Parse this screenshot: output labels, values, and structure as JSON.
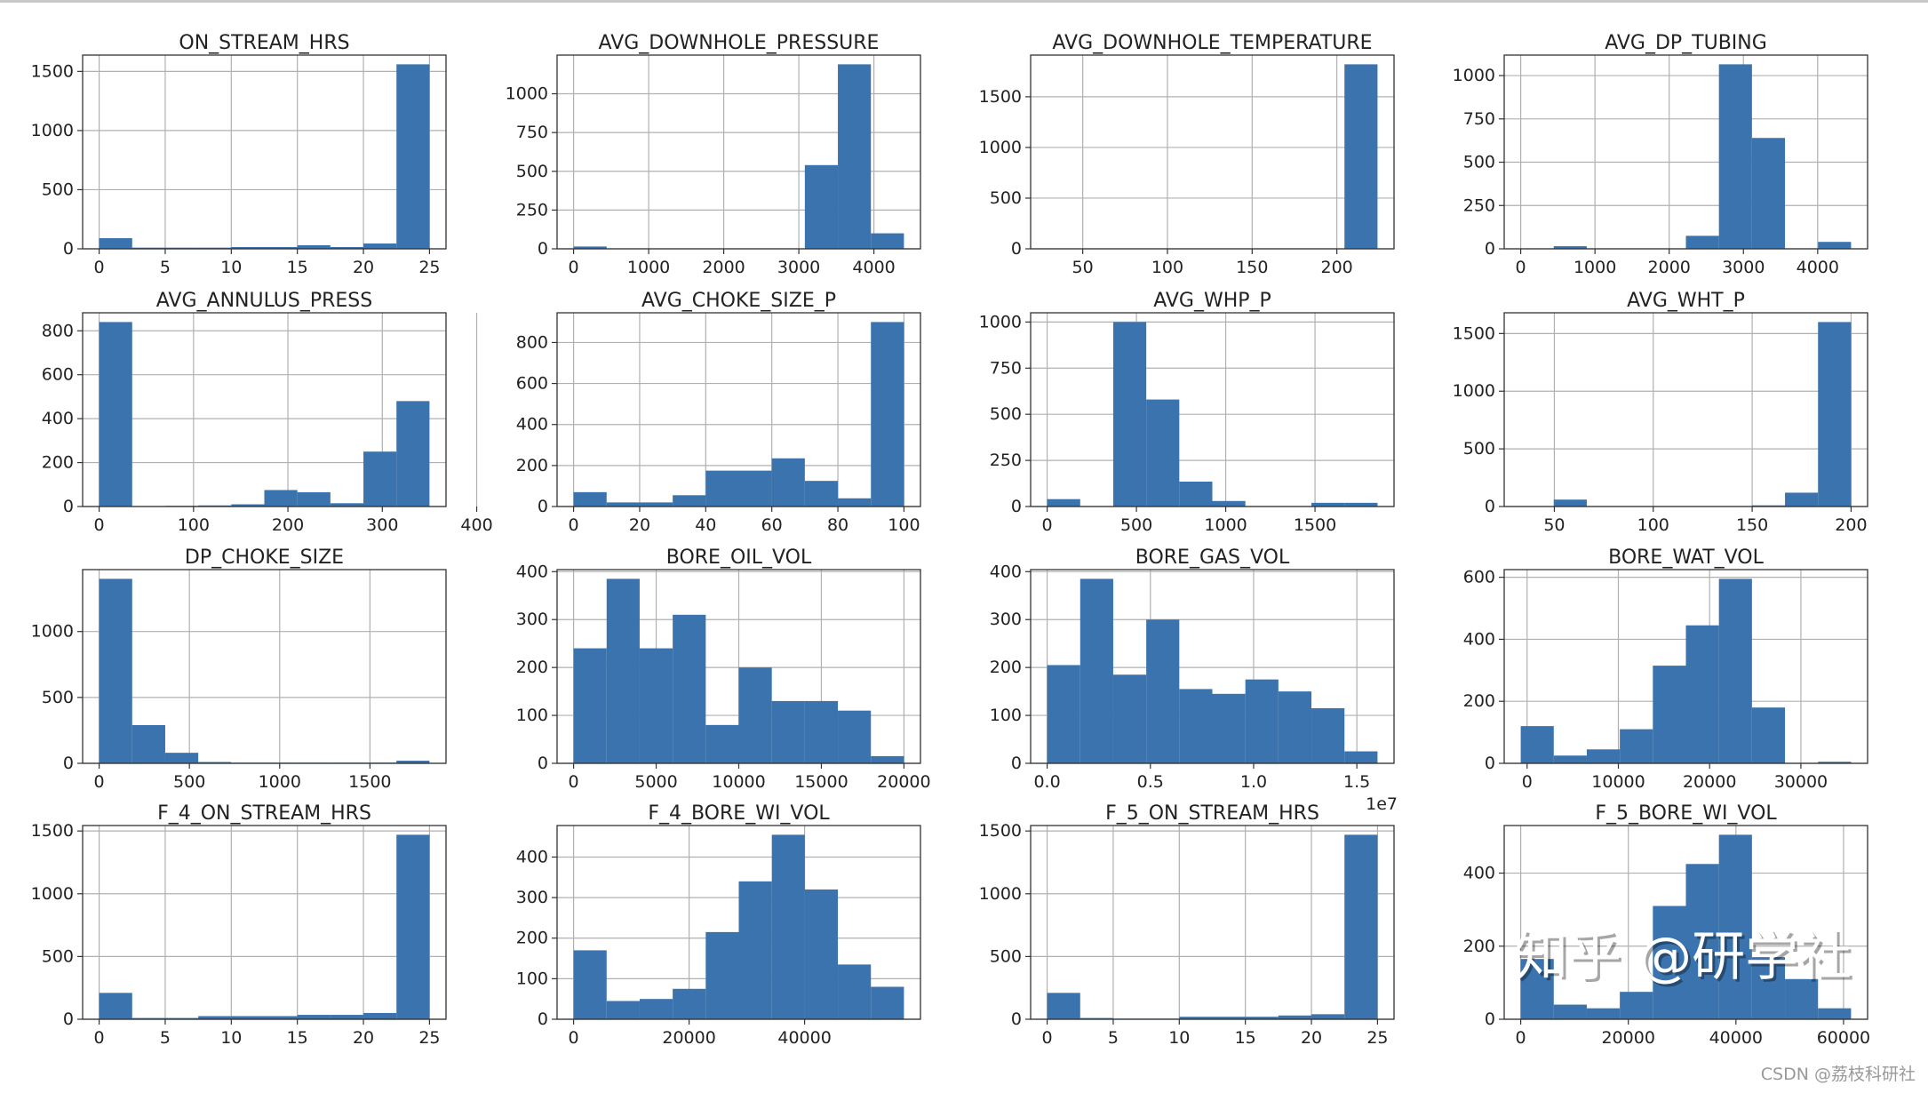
{
  "colors": {
    "bar": "#3a73ad",
    "grid": "#b0b0b0",
    "axis": "#333333"
  },
  "watermark": "知乎 @研学社",
  "credit": "CSDN @荔枝科研社",
  "chart_data": [
    {
      "type": "bar",
      "title": "ON_STREAM_HRS",
      "bin_range": [
        0,
        25
      ],
      "counts": [
        90,
        10,
        10,
        10,
        15,
        15,
        30,
        15,
        45,
        1560
      ],
      "xticks": [
        0,
        5,
        10,
        15,
        20,
        25
      ],
      "xtick_labels": [
        "0",
        "5",
        "10",
        "15",
        "20",
        "25"
      ],
      "yticks": [
        0,
        500,
        1000,
        1500
      ],
      "ytick_labels": [
        "0",
        "500",
        "1000",
        "1500"
      ],
      "grid": true
    },
    {
      "type": "bar",
      "title": "AVG_DOWNHOLE_PRESSURE",
      "bin_range": [
        0,
        4400
      ],
      "counts": [
        15,
        0,
        0,
        0,
        0,
        0,
        0,
        540,
        1190,
        100
      ],
      "xticks": [
        0,
        1000,
        2000,
        3000,
        4000
      ],
      "xtick_labels": [
        "0",
        "1000",
        "2000",
        "3000",
        "4000"
      ],
      "yticks": [
        0,
        250,
        500,
        750,
        1000
      ],
      "ytick_labels": [
        "0",
        "250",
        "500",
        "750",
        "1000"
      ],
      "grid": true
    },
    {
      "type": "bar",
      "title": "AVG_DOWNHOLE_TEMPERATURE",
      "bin_range": [
        29,
        224
      ],
      "counts": [
        0,
        0,
        0,
        0,
        0,
        0,
        0,
        0,
        0,
        1820
      ],
      "xticks": [
        50,
        100,
        150,
        200
      ],
      "xtick_labels": [
        "50",
        "100",
        "150",
        "200"
      ],
      "yticks": [
        0,
        500,
        1000,
        1500
      ],
      "ytick_labels": [
        "0",
        "500",
        "1000",
        "1500"
      ],
      "grid": true
    },
    {
      "type": "bar",
      "title": "AVG_DP_TUBING",
      "bin_range": [
        0,
        4450
      ],
      "counts": [
        0,
        15,
        0,
        0,
        0,
        75,
        1065,
        640,
        0,
        40
      ],
      "xticks": [
        0,
        1000,
        2000,
        3000,
        4000
      ],
      "xtick_labels": [
        "0",
        "1000",
        "2000",
        "3000",
        "4000"
      ],
      "yticks": [
        0,
        250,
        500,
        750,
        1000
      ],
      "ytick_labels": [
        "0",
        "250",
        "500",
        "750",
        "1000"
      ],
      "grid": true
    },
    {
      "type": "bar",
      "title": "AVG_ANNULUS_PRESS",
      "bin_range": [
        0,
        350
      ],
      "counts": [
        840,
        0,
        3,
        5,
        10,
        75,
        65,
        15,
        250,
        480
      ],
      "xticks": [
        0,
        100,
        200,
        300,
        400
      ],
      "xtick_labels": [
        "0",
        "100",
        "200",
        "300",
        "400"
      ],
      "yticks": [
        0,
        200,
        400,
        600,
        800
      ],
      "ytick_labels": [
        "0",
        "200",
        "400",
        "600",
        "800"
      ],
      "grid": true
    },
    {
      "type": "bar",
      "title": "AVG_CHOKE_SIZE_P",
      "bin_range": [
        0,
        100
      ],
      "counts": [
        70,
        20,
        20,
        55,
        175,
        175,
        235,
        125,
        40,
        900
      ],
      "xticks": [
        0,
        20,
        40,
        60,
        80,
        100
      ],
      "xtick_labels": [
        "0",
        "20",
        "40",
        "60",
        "80",
        "100"
      ],
      "yticks": [
        0,
        200,
        400,
        600,
        800
      ],
      "ytick_labels": [
        "0",
        "200",
        "400",
        "600",
        "800"
      ],
      "grid": true
    },
    {
      "type": "bar",
      "title": "AVG_WHP_P",
      "bin_range": [
        0,
        1850
      ],
      "counts": [
        40,
        0,
        1000,
        580,
        135,
        30,
        0,
        0,
        20,
        20
      ],
      "xticks": [
        0,
        500,
        1000,
        1500
      ],
      "xtick_labels": [
        "0",
        "500",
        "1000",
        "1500"
      ],
      "yticks": [
        0,
        250,
        500,
        750,
        1000
      ],
      "ytick_labels": [
        "0",
        "250",
        "500",
        "750",
        "1000"
      ],
      "grid": true
    },
    {
      "type": "bar",
      "title": "AVG_WHT_P",
      "bin_range": [
        33,
        200
      ],
      "counts": [
        0,
        60,
        0,
        0,
        0,
        0,
        0,
        10,
        120,
        1600
      ],
      "xticks": [
        50,
        100,
        150,
        200
      ],
      "xtick_labels": [
        "50",
        "100",
        "150",
        "200"
      ],
      "yticks": [
        0,
        500,
        1000,
        1500
      ],
      "ytick_labels": [
        "0",
        "500",
        "1000",
        "1500"
      ],
      "grid": true
    },
    {
      "type": "bar",
      "title": "DP_CHOKE_SIZE",
      "bin_range": [
        0,
        1830
      ],
      "counts": [
        1400,
        290,
        80,
        10,
        5,
        5,
        5,
        5,
        5,
        20
      ],
      "xticks": [
        0,
        500,
        1000,
        1500
      ],
      "xtick_labels": [
        "0",
        "500",
        "1000",
        "1500"
      ],
      "yticks": [
        0,
        500,
        1000
      ],
      "ytick_labels": [
        "0",
        "500",
        "1000"
      ],
      "grid": true
    },
    {
      "type": "bar",
      "title": "BORE_OIL_VOL",
      "bin_range": [
        0,
        20000
      ],
      "counts": [
        240,
        385,
        240,
        310,
        80,
        200,
        130,
        130,
        110,
        15
      ],
      "xticks": [
        0,
        5000,
        10000,
        15000,
        20000
      ],
      "xtick_labels": [
        "0",
        "5000",
        "10000",
        "15000",
        "20000"
      ],
      "yticks": [
        0,
        100,
        200,
        300,
        400
      ],
      "ytick_labels": [
        "0",
        "100",
        "200",
        "300",
        "400"
      ],
      "grid": true
    },
    {
      "type": "bar",
      "title": "BORE_GAS_VOL",
      "bin_range": [
        0,
        16000000
      ],
      "counts": [
        205,
        385,
        185,
        300,
        155,
        145,
        175,
        150,
        115,
        25
      ],
      "xticks": [
        0,
        5000000,
        10000000,
        15000000
      ],
      "xtick_labels": [
        "0.0",
        "0.5",
        "1.0",
        "1.5"
      ],
      "offset_text": "1e7",
      "yticks": [
        0,
        100,
        200,
        300,
        400
      ],
      "ytick_labels": [
        "0",
        "100",
        "200",
        "300",
        "400"
      ],
      "grid": true
    },
    {
      "type": "bar",
      "title": "BORE_WAT_VOL",
      "bin_range": [
        -700,
        35500
      ],
      "counts": [
        120,
        25,
        45,
        110,
        315,
        445,
        595,
        180,
        0,
        5
      ],
      "xticks": [
        0,
        10000,
        20000,
        30000
      ],
      "xtick_labels": [
        "0",
        "10000",
        "20000",
        "30000"
      ],
      "yticks": [
        0,
        200,
        400,
        600
      ],
      "ytick_labels": [
        "0",
        "200",
        "400",
        "600"
      ],
      "grid": true
    },
    {
      "type": "bar",
      "title": "F_4_ON_STREAM_HRS",
      "bin_range": [
        0,
        25
      ],
      "counts": [
        210,
        10,
        10,
        25,
        25,
        25,
        35,
        35,
        50,
        1470
      ],
      "xticks": [
        0,
        5,
        10,
        15,
        20,
        25
      ],
      "xtick_labels": [
        "0",
        "5",
        "10",
        "15",
        "20",
        "25"
      ],
      "yticks": [
        0,
        500,
        1000,
        1500
      ],
      "ytick_labels": [
        "0",
        "500",
        "1000",
        "1500"
      ],
      "grid": true
    },
    {
      "type": "bar",
      "title": "F_4_BORE_WI_VOL",
      "bin_range": [
        0,
        57200
      ],
      "counts": [
        170,
        45,
        50,
        75,
        215,
        340,
        455,
        320,
        135,
        80
      ],
      "xticks": [
        0,
        20000,
        40000
      ],
      "xtick_labels": [
        "0",
        "20000",
        "40000"
      ],
      "yticks": [
        0,
        100,
        200,
        300,
        400
      ],
      "ytick_labels": [
        "0",
        "100",
        "200",
        "300",
        "400"
      ],
      "grid": true
    },
    {
      "type": "bar",
      "title": "F_5_ON_STREAM_HRS",
      "bin_range": [
        0,
        25
      ],
      "counts": [
        210,
        10,
        5,
        5,
        20,
        20,
        20,
        30,
        40,
        1470
      ],
      "xticks": [
        0,
        5,
        10,
        15,
        20,
        25
      ],
      "xtick_labels": [
        "0",
        "5",
        "10",
        "15",
        "20",
        "25"
      ],
      "yticks": [
        0,
        500,
        1000,
        1500
      ],
      "ytick_labels": [
        "0",
        "500",
        "1000",
        "1500"
      ],
      "grid": true
    },
    {
      "type": "bar",
      "title": "F_5_BORE_WI_VOL",
      "bin_range": [
        0,
        61400
      ],
      "counts": [
        165,
        40,
        30,
        75,
        310,
        425,
        505,
        170,
        110,
        30
      ],
      "xticks": [
        0,
        20000,
        40000,
        60000
      ],
      "xtick_labels": [
        "0",
        "20000",
        "40000",
        "60000"
      ],
      "yticks": [
        0,
        200,
        400
      ],
      "ytick_labels": [
        "0",
        "200",
        "400"
      ],
      "grid": true
    }
  ]
}
